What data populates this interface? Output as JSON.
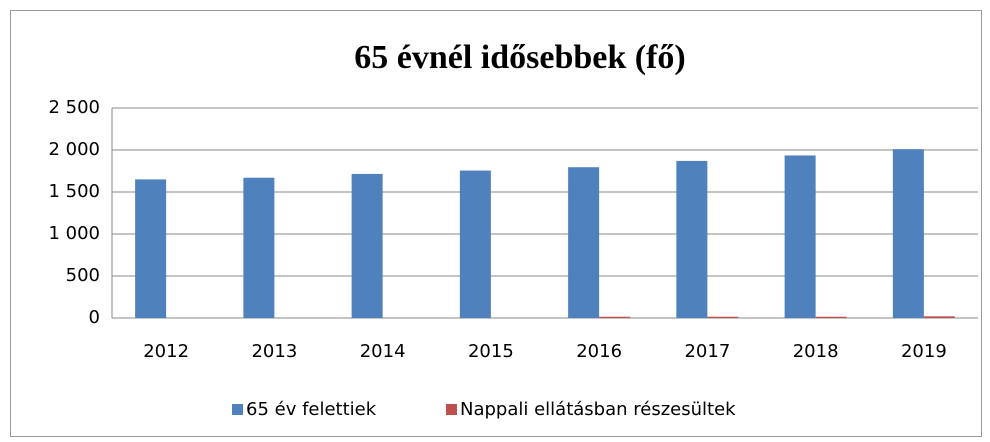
{
  "chart_data": {
    "type": "bar",
    "title": "65 évnél idősebbek (fő)",
    "categories": [
      "2012",
      "2013",
      "2014",
      "2015",
      "2016",
      "2017",
      "2018",
      "2019"
    ],
    "series": [
      {
        "name": "65 év felettiek",
        "color": "#4f81bd",
        "values": [
          1650,
          1670,
          1715,
          1755,
          1795,
          1870,
          1935,
          2010
        ]
      },
      {
        "name": "Nappali ellátásban részesültek",
        "color": "#c0504d",
        "values": [
          0,
          0,
          0,
          0,
          15,
          15,
          15,
          20
        ]
      }
    ],
    "ylim": [
      0,
      2500
    ],
    "yticks": [
      0,
      500,
      {
        "value": 1000,
        "label": "1 000"
      },
      {
        "value": 1500,
        "label": "1 500"
      },
      {
        "value": 2000,
        "label": "2 000"
      },
      {
        "value": 2500,
        "label": "2 500"
      }
    ],
    "grid": true,
    "legend": "bottom"
  }
}
